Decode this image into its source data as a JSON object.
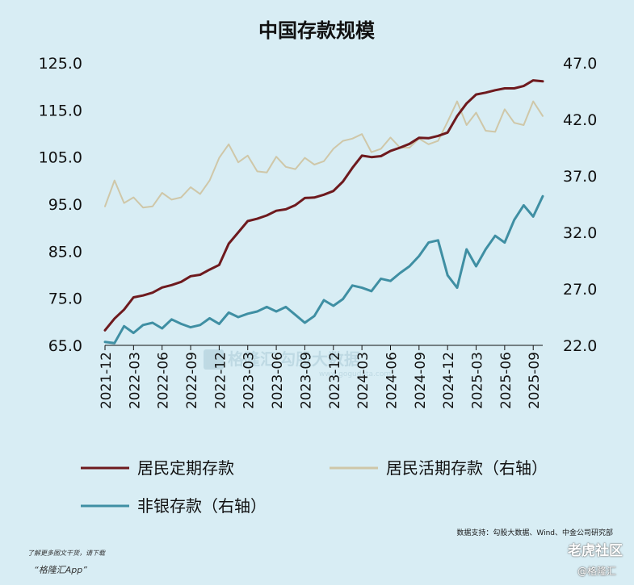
{
  "chart_data": {
    "type": "line",
    "title": "中国存款规模",
    "x": [
      "2021-12",
      "2022-01",
      "2022-02",
      "2022-03",
      "2022-04",
      "2022-05",
      "2022-06",
      "2022-07",
      "2022-08",
      "2022-09",
      "2022-10",
      "2022-11",
      "2022-12",
      "2023-01",
      "2023-02",
      "2023-03",
      "2023-04",
      "2023-05",
      "2023-06",
      "2023-07",
      "2023-08",
      "2023-09",
      "2023-10",
      "2023-11",
      "2023-12",
      "2024-01",
      "2024-02",
      "2024-03",
      "2024-04",
      "2024-05",
      "2024-06",
      "2024-07",
      "2024-08",
      "2024-09",
      "2024-10",
      "2024-11",
      "2024-12",
      "2025-01",
      "2025-02",
      "2025-03",
      "2025-04",
      "2025-05",
      "2025-06",
      "2025-07",
      "2025-08",
      "2025-09",
      "2025-10"
    ],
    "x_tick_labels": [
      "2021-12",
      "2022-03",
      "2022-06",
      "2022-09",
      "2022-12",
      "2023-03",
      "2023-06",
      "2023-09",
      "2023-12",
      "2024-03",
      "2024-06",
      "2024-09",
      "2024-12",
      "2025-03",
      "2025-06",
      "2025-09"
    ],
    "y_left": {
      "ticks": [
        "125.0",
        "115.0",
        "105.0",
        "95.0",
        "85.0",
        "75.0",
        "65.0"
      ],
      "ylim": [
        65,
        125
      ]
    },
    "y_right": {
      "ticks": [
        "47.0",
        "42.0",
        "37.0",
        "32.0",
        "27.0",
        "22.0"
      ],
      "ylim": [
        22,
        47
      ]
    },
    "series": [
      {
        "name": "居民定期存款",
        "axis": "left",
        "color": "#6e1a1e",
        "values": [
          68.2,
          70.7,
          72.6,
          75.2,
          75.6,
          76.2,
          77.3,
          77.8,
          78.5,
          79.7,
          80.0,
          81.1,
          82.1,
          86.6,
          89.0,
          91.4,
          91.9,
          92.6,
          93.6,
          93.9,
          94.8,
          96.3,
          96.4,
          97.0,
          97.8,
          99.8,
          102.7,
          105.3,
          105.0,
          105.2,
          106.3,
          107.0,
          107.8,
          109.1,
          109.0,
          109.5,
          110.2,
          113.7,
          116.4,
          118.3,
          118.7,
          119.2,
          119.6,
          119.6,
          120.1,
          121.3,
          121.1
        ]
      },
      {
        "name": "居民活期存款（右轴）",
        "axis": "right",
        "color": "#cfc7a8",
        "values": [
          34.3,
          36.6,
          34.6,
          35.1,
          34.2,
          34.3,
          35.5,
          34.9,
          35.1,
          36.0,
          35.4,
          36.6,
          38.6,
          39.8,
          38.2,
          38.8,
          37.4,
          37.3,
          38.7,
          37.8,
          37.6,
          38.6,
          38.0,
          38.3,
          39.4,
          40.1,
          40.3,
          40.7,
          39.1,
          39.4,
          40.4,
          39.5,
          39.5,
          40.3,
          39.8,
          40.1,
          41.8,
          43.6,
          41.5,
          42.6,
          41.0,
          40.9,
          42.9,
          41.7,
          41.5,
          43.6,
          42.3
        ]
      },
      {
        "name": "非银存款（右轴）",
        "axis": "right",
        "color": "#3f8fa3",
        "values": [
          22.3,
          22.2,
          23.7,
          23.1,
          23.8,
          24.0,
          23.5,
          24.3,
          23.9,
          23.6,
          23.8,
          24.4,
          23.9,
          24.9,
          24.5,
          24.8,
          25.0,
          25.4,
          25.0,
          25.4,
          24.7,
          24.0,
          24.6,
          26.0,
          25.5,
          26.1,
          27.3,
          27.1,
          26.8,
          27.9,
          27.7,
          28.4,
          29.0,
          29.9,
          31.1,
          31.3,
          28.2,
          27.1,
          30.5,
          29.0,
          30.5,
          31.7,
          31.1,
          33.1,
          34.4,
          33.4,
          35.2
        ]
      }
    ],
    "legend_position": "bottom",
    "grid": false
  },
  "watermark": {
    "brand_text": "格隆汇",
    "brand_sub": "Gelonghui",
    "partner_text": "勾股大数据",
    "partner_sub": "www.gogudata.com"
  },
  "footer": {
    "source": "数据支持：勾股大数据、Wind、中金公司研究部",
    "promo_line1": "了解更多图文干货，请下载",
    "promo_line2": "“格隆汇App”",
    "forum": "老虎社区",
    "brand_tag": "@格隆汇"
  },
  "colors": {
    "background": "#d8edf4",
    "axis": "#111111"
  }
}
